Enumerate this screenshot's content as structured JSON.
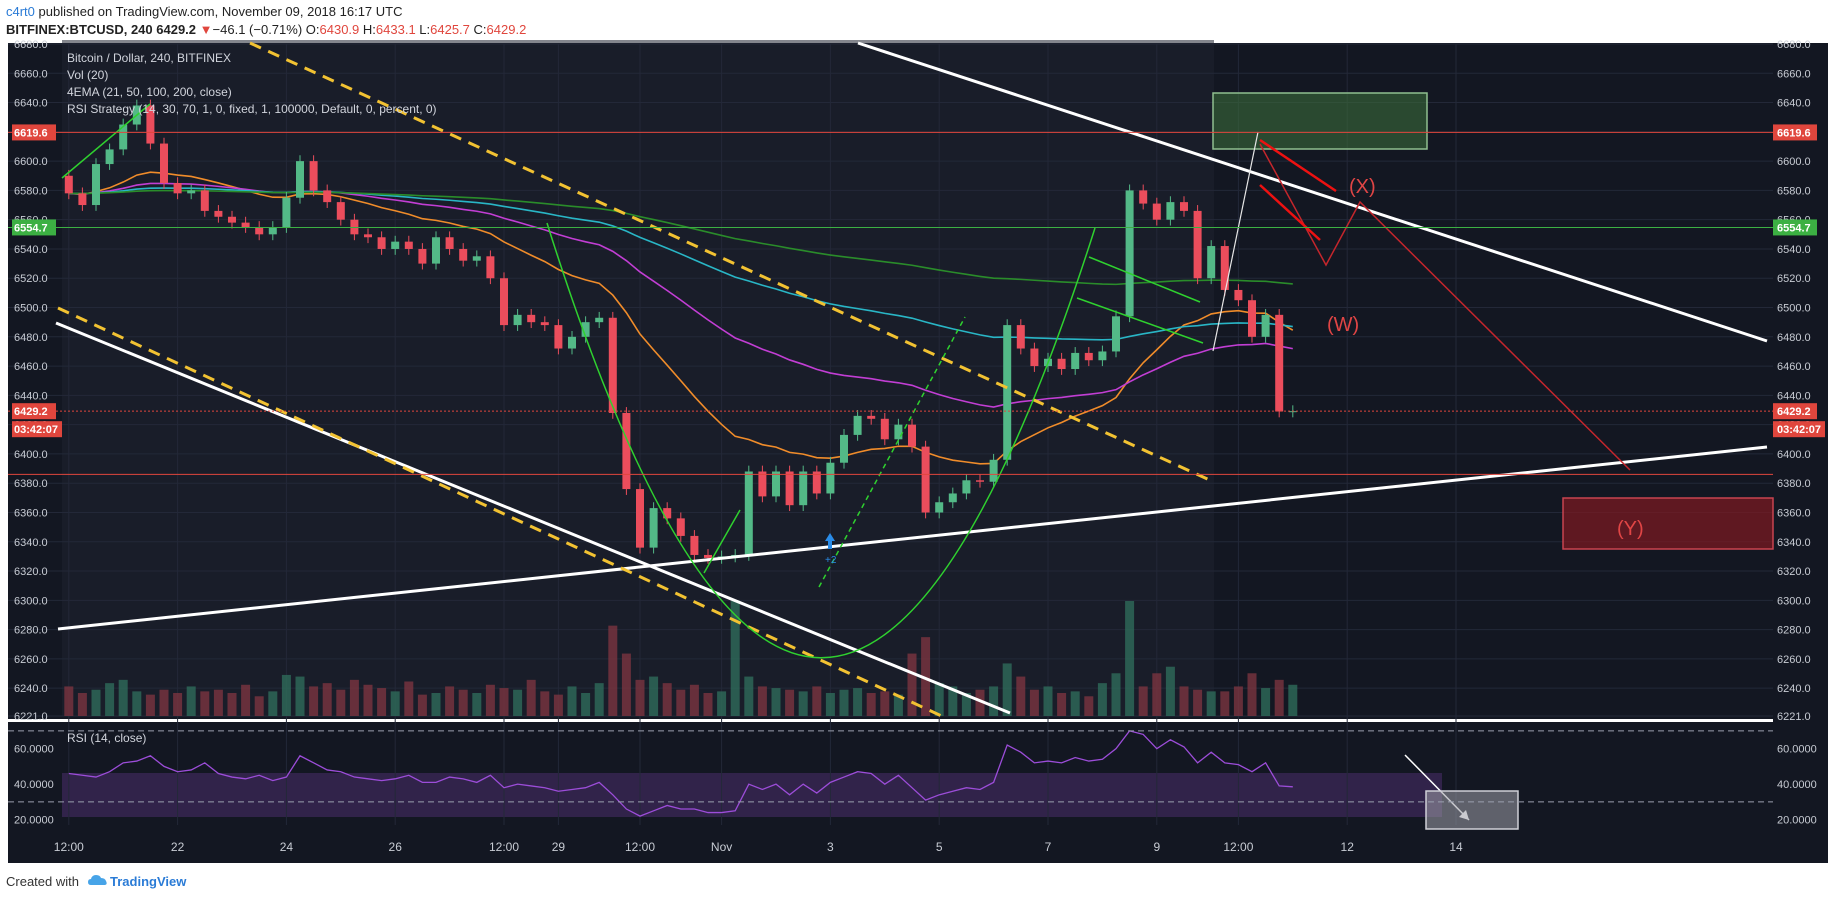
{
  "header": {
    "author": "c4rt0",
    "published_text": " published on TradingView.com, November 09, 2018 16:17 UTC",
    "symbol": "BITFINEX:BTCUSD, 240",
    "last": "6429.2",
    "change_arrow": "▼",
    "change": "−46.1 (−0.71%)",
    "o_label": "O:",
    "o_value": "6430.9",
    "h_label": "H:",
    "h_value": "6433.1",
    "l_label": "L:",
    "l_value": "6425.7",
    "c_label": "C:",
    "c_value": "6429.2"
  },
  "chart_data": {
    "type": "candlestick",
    "legend": [
      "Bitcoin / Dollar, 240, BITFINEX",
      "Vol (20)",
      "4EMA (21, 50, 100, 200, close)",
      "RSI Strategy (14, 30, 70, 1, 0, fixed, 1, 100000, Default, 0, percent, 0)"
    ],
    "rsi_legend": "RSI (14, close)",
    "price_axis": {
      "min": 6221,
      "max": 6680,
      "ticks": [
        "6680.0",
        "6660.0",
        "6640.0",
        "6620.0",
        "6600.0",
        "6580.0",
        "6560.0",
        "6540.0",
        "6520.0",
        "6500.0",
        "6480.0",
        "6460.0",
        "6440.0",
        "6420.0",
        "6400.0",
        "6380.0",
        "6360.0",
        "6340.0",
        "6320.0",
        "6300.0",
        "6280.0",
        "6260.0",
        "6240.0",
        "6221.0"
      ]
    },
    "rsi_axis": {
      "min": 17,
      "max": 75,
      "ticks": [
        60,
        40,
        20
      ],
      "tick_labels": [
        "60.0000",
        "40.0000",
        "20.0000"
      ],
      "levels": [
        70,
        30
      ]
    },
    "x_axis": {
      "ticks": [
        "12:00",
        "22",
        "24",
        "26",
        "12:00",
        "29",
        "12:00",
        "Nov",
        "3",
        "5",
        "7",
        "9",
        "12:00",
        "12",
        "14"
      ],
      "tick_bars": [
        0,
        8,
        16,
        24,
        32,
        36,
        42,
        48,
        56,
        64,
        72,
        80,
        86,
        94,
        102
      ]
    },
    "price_labels": [
      {
        "value": 6619.6,
        "text": "6619.6",
        "color": "#e0463d"
      },
      {
        "value": 6554.7,
        "text": "6554.7",
        "color": "#3cb043"
      },
      {
        "value": 6429.2,
        "text": "6429.2",
        "color": "#e0463d"
      }
    ],
    "countdown": "03:42:07",
    "bars_open": [
      6590,
      6578,
      6570,
      6598,
      6608,
      6625,
      6638,
      6612,
      6585,
      6578,
      6580,
      6566,
      6562,
      6558,
      6555,
      6550,
      6555,
      6575,
      6600,
      6580,
      6572,
      6560,
      6550,
      6548,
      6540,
      6545,
      6540,
      6530,
      6548,
      6540,
      6532,
      6535,
      6520,
      6488,
      6495,
      6490,
      6488,
      6472,
      6480,
      6490,
      6493,
      6428,
      6376,
      6336,
      6363,
      6356,
      6344,
      6331,
      6329,
      6330,
      6331,
      6388,
      6371,
      6388,
      6365,
      6388,
      6373,
      6394,
      6413,
      6426,
      6424,
      6410,
      6420,
      6405,
      6360,
      6367,
      6373,
      6382,
      6381,
      6396,
      6488,
      6472,
      6460,
      6465,
      6458,
      6469,
      6464,
      6470,
      6494,
      6580,
      6571,
      6560,
      6572,
      6566,
      6520,
      6542,
      6512,
      6505,
      6480,
      6495,
      6429
    ],
    "bars_close": [
      6578,
      6570,
      6598,
      6608,
      6625,
      6638,
      6612,
      6585,
      6578,
      6580,
      6566,
      6562,
      6558,
      6555,
      6550,
      6555,
      6575,
      6600,
      6580,
      6572,
      6560,
      6550,
      6548,
      6540,
      6545,
      6540,
      6530,
      6548,
      6540,
      6532,
      6535,
      6520,
      6488,
      6495,
      6490,
      6488,
      6472,
      6480,
      6490,
      6493,
      6428,
      6376,
      6336,
      6363,
      6356,
      6344,
      6331,
      6329,
      6330,
      6331,
      6388,
      6371,
      6388,
      6365,
      6388,
      6373,
      6394,
      6413,
      6426,
      6424,
      6410,
      6420,
      6405,
      6360,
      6367,
      6373,
      6382,
      6381,
      6396,
      6488,
      6472,
      6460,
      6465,
      6458,
      6469,
      6464,
      6470,
      6494,
      6580,
      6571,
      6560,
      6572,
      6566,
      6520,
      6542,
      6512,
      6505,
      6480,
      6495,
      6429,
      6429.2
    ],
    "volumes": [
      18,
      14,
      16,
      20,
      22,
      15,
      13,
      16,
      14,
      18,
      15,
      16,
      14,
      19,
      12,
      15,
      25,
      24,
      18,
      20,
      16,
      22,
      19,
      17,
      15,
      21,
      13,
      14,
      18,
      16,
      14,
      19,
      17,
      16,
      22,
      15,
      13,
      18,
      14,
      20,
      55,
      38,
      22,
      24,
      20,
      16,
      19,
      14,
      15,
      70,
      24,
      18,
      17,
      16,
      15,
      18,
      14,
      16,
      17,
      14,
      15,
      13,
      38,
      48,
      20,
      18,
      14,
      16,
      18,
      32,
      24,
      16,
      18,
      14,
      15,
      12,
      20,
      26,
      70,
      18,
      26,
      30,
      18,
      16,
      15,
      15,
      18,
      26,
      17,
      22,
      19
    ],
    "rsi_values": [
      46,
      45,
      44,
      47,
      52,
      53,
      56,
      50,
      47,
      48,
      52,
      46,
      44,
      43,
      45,
      42,
      44,
      56,
      52,
      48,
      47,
      44,
      43,
      42,
      43,
      45,
      41,
      41,
      44,
      43,
      41,
      45,
      38,
      40,
      39,
      38,
      36,
      37,
      38,
      41,
      34,
      26,
      22,
      25,
      28,
      26,
      26,
      24,
      24,
      25,
      40,
      37,
      40,
      34,
      40,
      35,
      41,
      44,
      47,
      46,
      40,
      45,
      38,
      31,
      34,
      36,
      38,
      37,
      41,
      62,
      58,
      52,
      53,
      52,
      55,
      53,
      54,
      60,
      70,
      68,
      60,
      65,
      61,
      52,
      58,
      52,
      51,
      47,
      52,
      39,
      38.5
    ]
  },
  "annotations": {
    "wave_w": "(W)",
    "wave_x": "(X)",
    "wave_y": "(Y)",
    "signal_label": "+2"
  },
  "footer": {
    "created_with": "Created with",
    "brand": "TradingView"
  },
  "colors": {
    "background": "#131722",
    "up": "#53b987",
    "down": "#eb4d5c",
    "ema21": "#f08c2a",
    "ema50": "#c23ed4",
    "ema100": "#29b6c6",
    "ema200": "#2a8c2a",
    "rsi": "#9c4dd9",
    "trend_white": "#ffffff",
    "trend_yellow": "#f2c232"
  }
}
